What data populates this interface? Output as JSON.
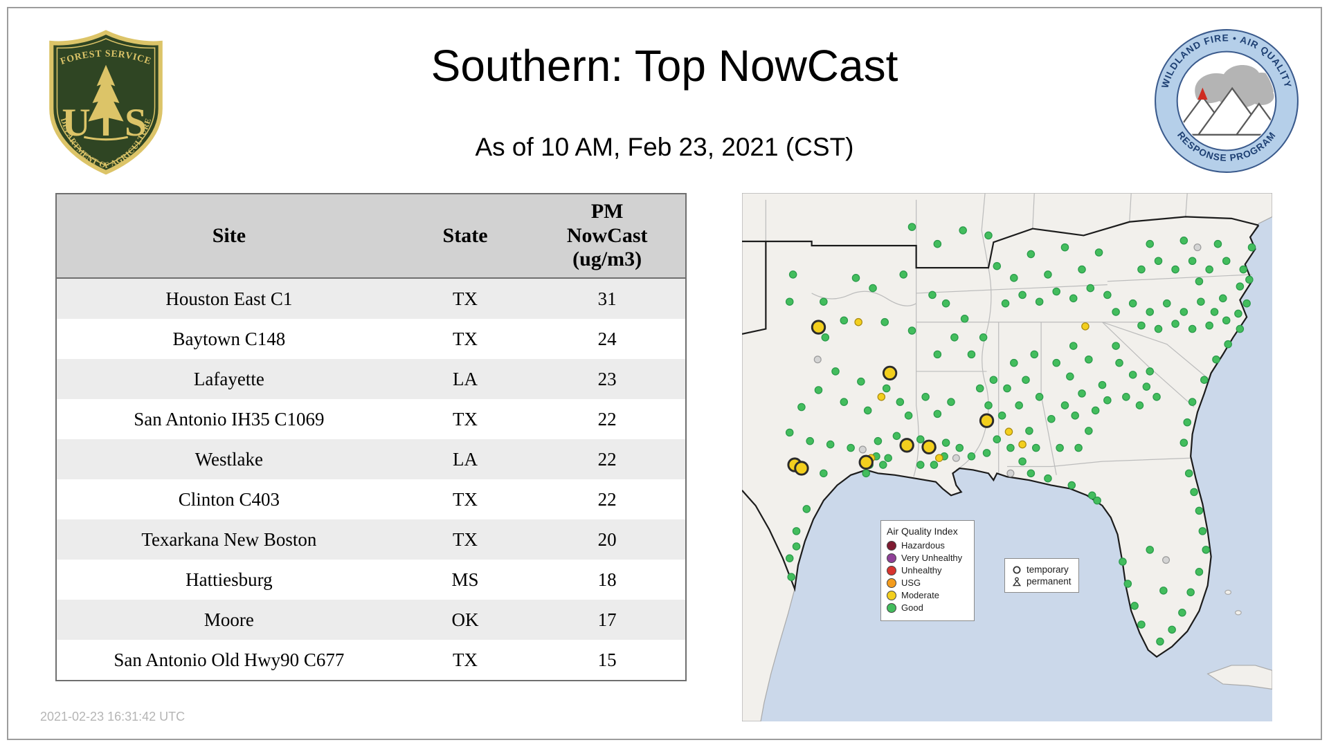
{
  "page": {
    "title": "Southern: Top NowCast",
    "subtitle": "As of 10 AM, Feb 23, 2021 (CST)",
    "timestamp": "2021-02-23 16:31:42 UTC"
  },
  "usfs_logo": {
    "arc_top": "FOREST SERVICE",
    "letter_left": "U",
    "letter_right": "S",
    "arc_bottom": "DEPARTMENT OF AGRICULTURE"
  },
  "airfire_logo": {
    "arc_top": "WILDLAND FIRE • AIR QUALITY",
    "arc_bottom": "RESPONSE PROGRAM"
  },
  "table": {
    "header": {
      "site": "Site",
      "state": "State",
      "pm": "PM\nNowCast\n(ug/m3)"
    },
    "rows": [
      {
        "site": "Houston East C1",
        "state": "TX",
        "pm": "31"
      },
      {
        "site": "Baytown C148",
        "state": "TX",
        "pm": "24"
      },
      {
        "site": "Lafayette",
        "state": "LA",
        "pm": "23"
      },
      {
        "site": "San Antonio IH35 C1069",
        "state": "TX",
        "pm": "22"
      },
      {
        "site": "Westlake",
        "state": "LA",
        "pm": "22"
      },
      {
        "site": "Clinton C403",
        "state": "TX",
        "pm": "22"
      },
      {
        "site": "Texarkana New Boston",
        "state": "TX",
        "pm": "20"
      },
      {
        "site": "Hattiesburg",
        "state": "MS",
        "pm": "18"
      },
      {
        "site": "Moore",
        "state": "OK",
        "pm": "17"
      },
      {
        "site": "San Antonio Old Hwy90 C677",
        "state": "TX",
        "pm": "15"
      }
    ]
  },
  "map": {
    "legend": {
      "title": "Air Quality Index",
      "items": [
        {
          "label": "Hazardous",
          "color": "#7e1a31"
        },
        {
          "label": "Very Unhealthy",
          "color": "#8f4097"
        },
        {
          "label": "Unhealthy",
          "color": "#d7342f"
        },
        {
          "label": "USG",
          "color": "#f49c1d"
        },
        {
          "label": "Moderate",
          "color": "#f3cf1e"
        },
        {
          "label": "Good",
          "color": "#43bd5d"
        }
      ]
    },
    "marker_legend": {
      "temporary": "temporary",
      "permanent": "permanent"
    },
    "stations": {
      "good": [
        [
          134,
          100
        ],
        [
          154,
          112
        ],
        [
          190,
          96
        ],
        [
          60,
          96
        ],
        [
          96,
          128
        ],
        [
          56,
          128
        ],
        [
          120,
          150
        ],
        [
          168,
          152
        ],
        [
          200,
          162
        ],
        [
          98,
          170
        ],
        [
          110,
          210
        ],
        [
          140,
          222
        ],
        [
          170,
          230
        ],
        [
          186,
          246
        ],
        [
          196,
          262
        ],
        [
          148,
          256
        ],
        [
          120,
          246
        ],
        [
          90,
          232
        ],
        [
          70,
          252
        ],
        [
          56,
          282
        ],
        [
          80,
          292
        ],
        [
          104,
          296
        ],
        [
          128,
          300
        ],
        [
          160,
          292
        ],
        [
          182,
          286
        ],
        [
          96,
          330
        ],
        [
          76,
          372
        ],
        [
          64,
          398
        ],
        [
          64,
          416
        ],
        [
          56,
          430
        ],
        [
          58,
          452
        ],
        [
          150,
          320
        ],
        [
          158,
          310
        ],
        [
          166,
          320
        ],
        [
          146,
          330
        ],
        [
          172,
          312
        ],
        [
          210,
          290
        ],
        [
          224,
          300
        ],
        [
          238,
          310
        ],
        [
          226,
          320
        ],
        [
          210,
          320
        ],
        [
          240,
          294
        ],
        [
          256,
          300
        ],
        [
          230,
          260
        ],
        [
          246,
          246
        ],
        [
          216,
          240
        ],
        [
          230,
          190
        ],
        [
          250,
          170
        ],
        [
          262,
          148
        ],
        [
          240,
          130
        ],
        [
          224,
          120
        ],
        [
          270,
          190
        ],
        [
          284,
          170
        ],
        [
          230,
          60
        ],
        [
          260,
          44
        ],
        [
          290,
          50
        ],
        [
          200,
          40
        ],
        [
          280,
          230
        ],
        [
          290,
          250
        ],
        [
          300,
          290
        ],
        [
          288,
          306
        ],
        [
          270,
          310
        ],
        [
          306,
          262
        ],
        [
          296,
          220
        ],
        [
          310,
          130
        ],
        [
          330,
          120
        ],
        [
          350,
          128
        ],
        [
          370,
          116
        ],
        [
          390,
          124
        ],
        [
          410,
          112
        ],
        [
          430,
          120
        ],
        [
          320,
          100
        ],
        [
          360,
          96
        ],
        [
          400,
          90
        ],
        [
          340,
          72
        ],
        [
          380,
          64
        ],
        [
          420,
          70
        ],
        [
          300,
          86
        ],
        [
          320,
          200
        ],
        [
          334,
          220
        ],
        [
          326,
          250
        ],
        [
          338,
          280
        ],
        [
          316,
          300
        ],
        [
          346,
          300
        ],
        [
          330,
          316
        ],
        [
          350,
          240
        ],
        [
          312,
          230
        ],
        [
          344,
          190
        ],
        [
          370,
          200
        ],
        [
          386,
          216
        ],
        [
          400,
          236
        ],
        [
          380,
          250
        ],
        [
          364,
          266
        ],
        [
          392,
          262
        ],
        [
          408,
          280
        ],
        [
          374,
          300
        ],
        [
          396,
          300
        ],
        [
          416,
          256
        ],
        [
          424,
          226
        ],
        [
          408,
          196
        ],
        [
          390,
          180
        ],
        [
          430,
          244
        ],
        [
          444,
          200
        ],
        [
          460,
          214
        ],
        [
          476,
          228
        ],
        [
          452,
          240
        ],
        [
          468,
          250
        ],
        [
          488,
          240
        ],
        [
          440,
          180
        ],
        [
          480,
          210
        ],
        [
          440,
          140
        ],
        [
          460,
          130
        ],
        [
          480,
          140
        ],
        [
          500,
          130
        ],
        [
          520,
          140
        ],
        [
          540,
          128
        ],
        [
          556,
          140
        ],
        [
          470,
          156
        ],
        [
          490,
          160
        ],
        [
          510,
          154
        ],
        [
          530,
          160
        ],
        [
          550,
          156
        ],
        [
          570,
          150
        ],
        [
          584,
          142
        ],
        [
          566,
          124
        ],
        [
          594,
          130
        ],
        [
          470,
          90
        ],
        [
          490,
          80
        ],
        [
          510,
          90
        ],
        [
          530,
          80
        ],
        [
          550,
          90
        ],
        [
          570,
          80
        ],
        [
          590,
          90
        ],
        [
          480,
          60
        ],
        [
          520,
          56
        ],
        [
          560,
          60
        ],
        [
          600,
          64
        ],
        [
          597,
          102
        ],
        [
          586,
          110
        ],
        [
          538,
          104
        ],
        [
          586,
          160
        ],
        [
          572,
          178
        ],
        [
          558,
          196
        ],
        [
          544,
          220
        ],
        [
          530,
          246
        ],
        [
          524,
          270
        ],
        [
          520,
          294
        ],
        [
          526,
          330
        ],
        [
          532,
          352
        ],
        [
          538,
          374
        ],
        [
          542,
          398
        ],
        [
          546,
          420
        ],
        [
          538,
          446
        ],
        [
          528,
          470
        ],
        [
          518,
          494
        ],
        [
          506,
          514
        ],
        [
          492,
          528
        ],
        [
          470,
          508
        ],
        [
          462,
          486
        ],
        [
          454,
          460
        ],
        [
          448,
          434
        ],
        [
          480,
          420
        ],
        [
          496,
          468
        ],
        [
          340,
          330
        ],
        [
          360,
          336
        ],
        [
          388,
          344
        ],
        [
          412,
          356
        ],
        [
          418,
          362
        ]
      ],
      "moderate": [
        [
          137,
          152
        ],
        [
          164,
          240
        ],
        [
          314,
          281
        ],
        [
          404,
          157
        ],
        [
          152,
          312
        ],
        [
          232,
          312
        ],
        [
          330,
          296
        ]
      ],
      "missing": [
        [
          89,
          196
        ],
        [
          142,
          302
        ],
        [
          252,
          312
        ],
        [
          316,
          330
        ],
        [
          536,
          64
        ],
        [
          499,
          432
        ]
      ],
      "moderate_temporary": [
        [
          90,
          158
        ],
        [
          174,
          212
        ],
        [
          288,
          268
        ],
        [
          194,
          297
        ],
        [
          220,
          299
        ],
        [
          62,
          320
        ],
        [
          70,
          324
        ],
        [
          146,
          317
        ]
      ]
    }
  }
}
